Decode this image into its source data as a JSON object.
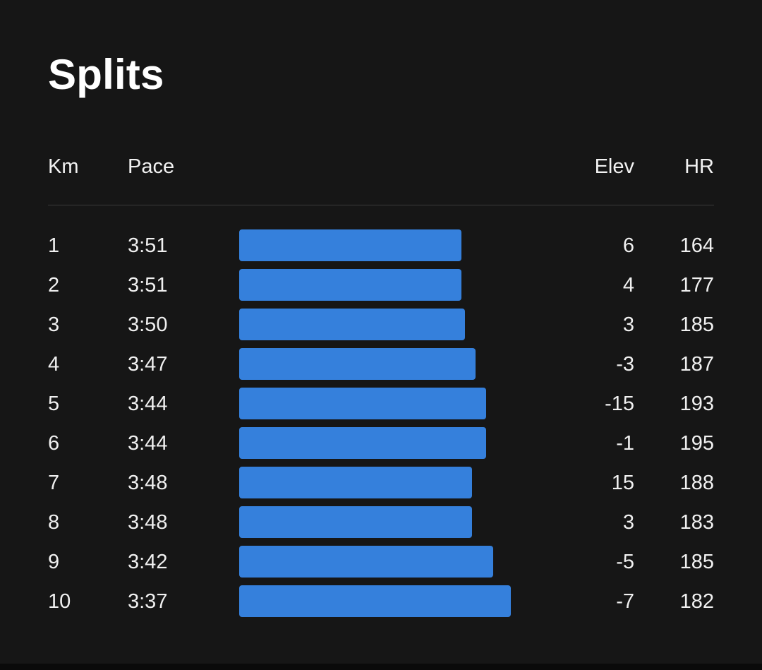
{
  "title": "Splits",
  "colors": {
    "bar": "#3580dc",
    "background": "#161616"
  },
  "columns": {
    "km": "Km",
    "pace": "Pace",
    "elev": "Elev",
    "hr": "HR"
  },
  "splits": [
    {
      "km": "1",
      "pace": "3:51",
      "pace_seconds": 231,
      "elev": "6",
      "hr": "164"
    },
    {
      "km": "2",
      "pace": "3:51",
      "pace_seconds": 231,
      "elev": "4",
      "hr": "177"
    },
    {
      "km": "3",
      "pace": "3:50",
      "pace_seconds": 230,
      "elev": "3",
      "hr": "185"
    },
    {
      "km": "4",
      "pace": "3:47",
      "pace_seconds": 227,
      "elev": "-3",
      "hr": "187"
    },
    {
      "km": "5",
      "pace": "3:44",
      "pace_seconds": 224,
      "elev": "-15",
      "hr": "193"
    },
    {
      "km": "6",
      "pace": "3:44",
      "pace_seconds": 224,
      "elev": "-1",
      "hr": "195"
    },
    {
      "km": "7",
      "pace": "3:48",
      "pace_seconds": 228,
      "elev": "15",
      "hr": "188"
    },
    {
      "km": "8",
      "pace": "3:48",
      "pace_seconds": 228,
      "elev": "3",
      "hr": "183"
    },
    {
      "km": "9",
      "pace": "3:42",
      "pace_seconds": 222,
      "elev": "-5",
      "hr": "185"
    },
    {
      "km": "10",
      "pace": "3:37",
      "pace_seconds": 217,
      "elev": "-7",
      "hr": "182"
    }
  ]
}
